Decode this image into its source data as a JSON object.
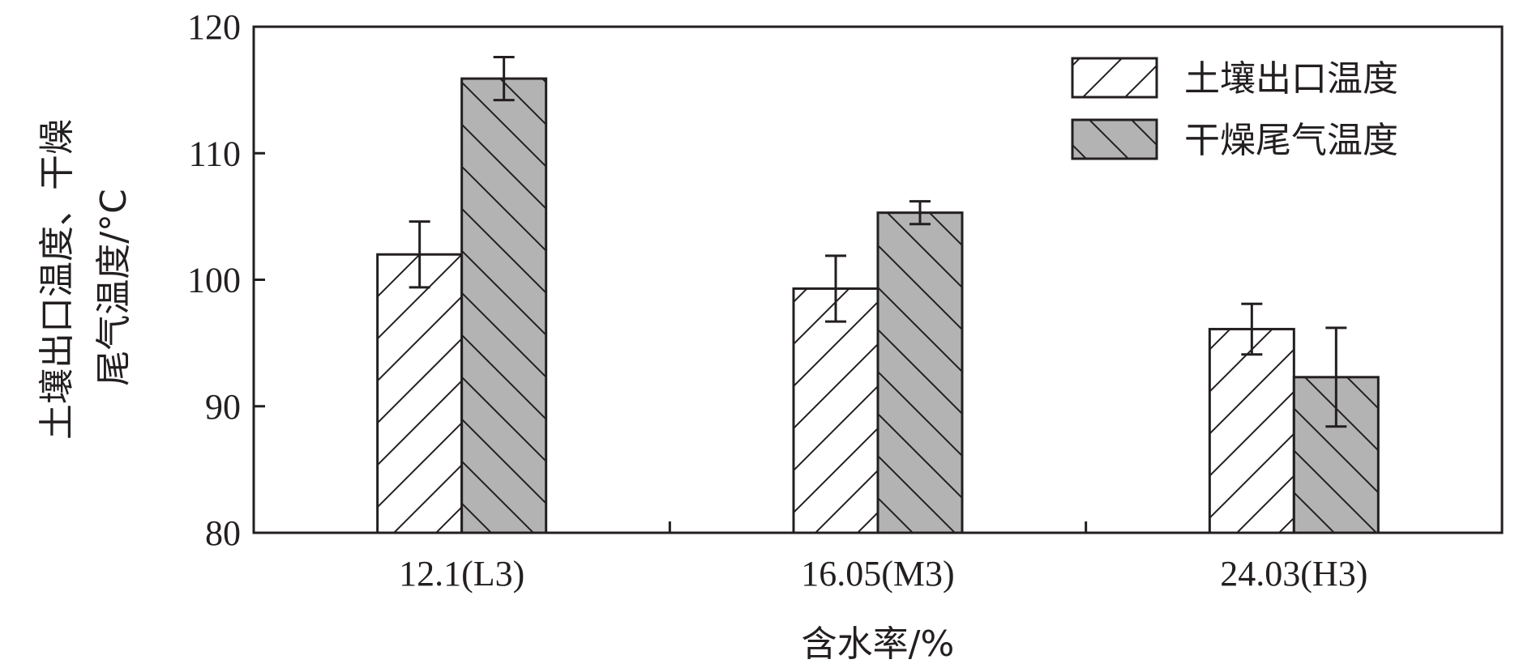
{
  "chart_data": {
    "type": "bar",
    "xlabel": "含水率/%",
    "ylabel_lines": [
      "土壤出口温度、干燥",
      "尾气温度/°C"
    ],
    "categories": [
      "12.1(L3)",
      "16.05(M3)",
      "24.03(H3)"
    ],
    "ylim": [
      80,
      120
    ],
    "yticks": [
      80,
      90,
      100,
      110,
      120
    ],
    "grid": false,
    "legend_position": "top-right",
    "series": [
      {
        "name": "土壤出口温度",
        "values": [
          102.0,
          99.3,
          96.1
        ],
        "errors": [
          2.6,
          2.6,
          2.0
        ],
        "color": "#ffffff",
        "hatch": "forward"
      },
      {
        "name": "干燥尾气温度",
        "values": [
          115.9,
          105.3,
          92.3
        ],
        "errors": [
          1.7,
          0.9,
          3.9
        ],
        "color": "#b3b3b3",
        "hatch": "backward"
      }
    ]
  }
}
